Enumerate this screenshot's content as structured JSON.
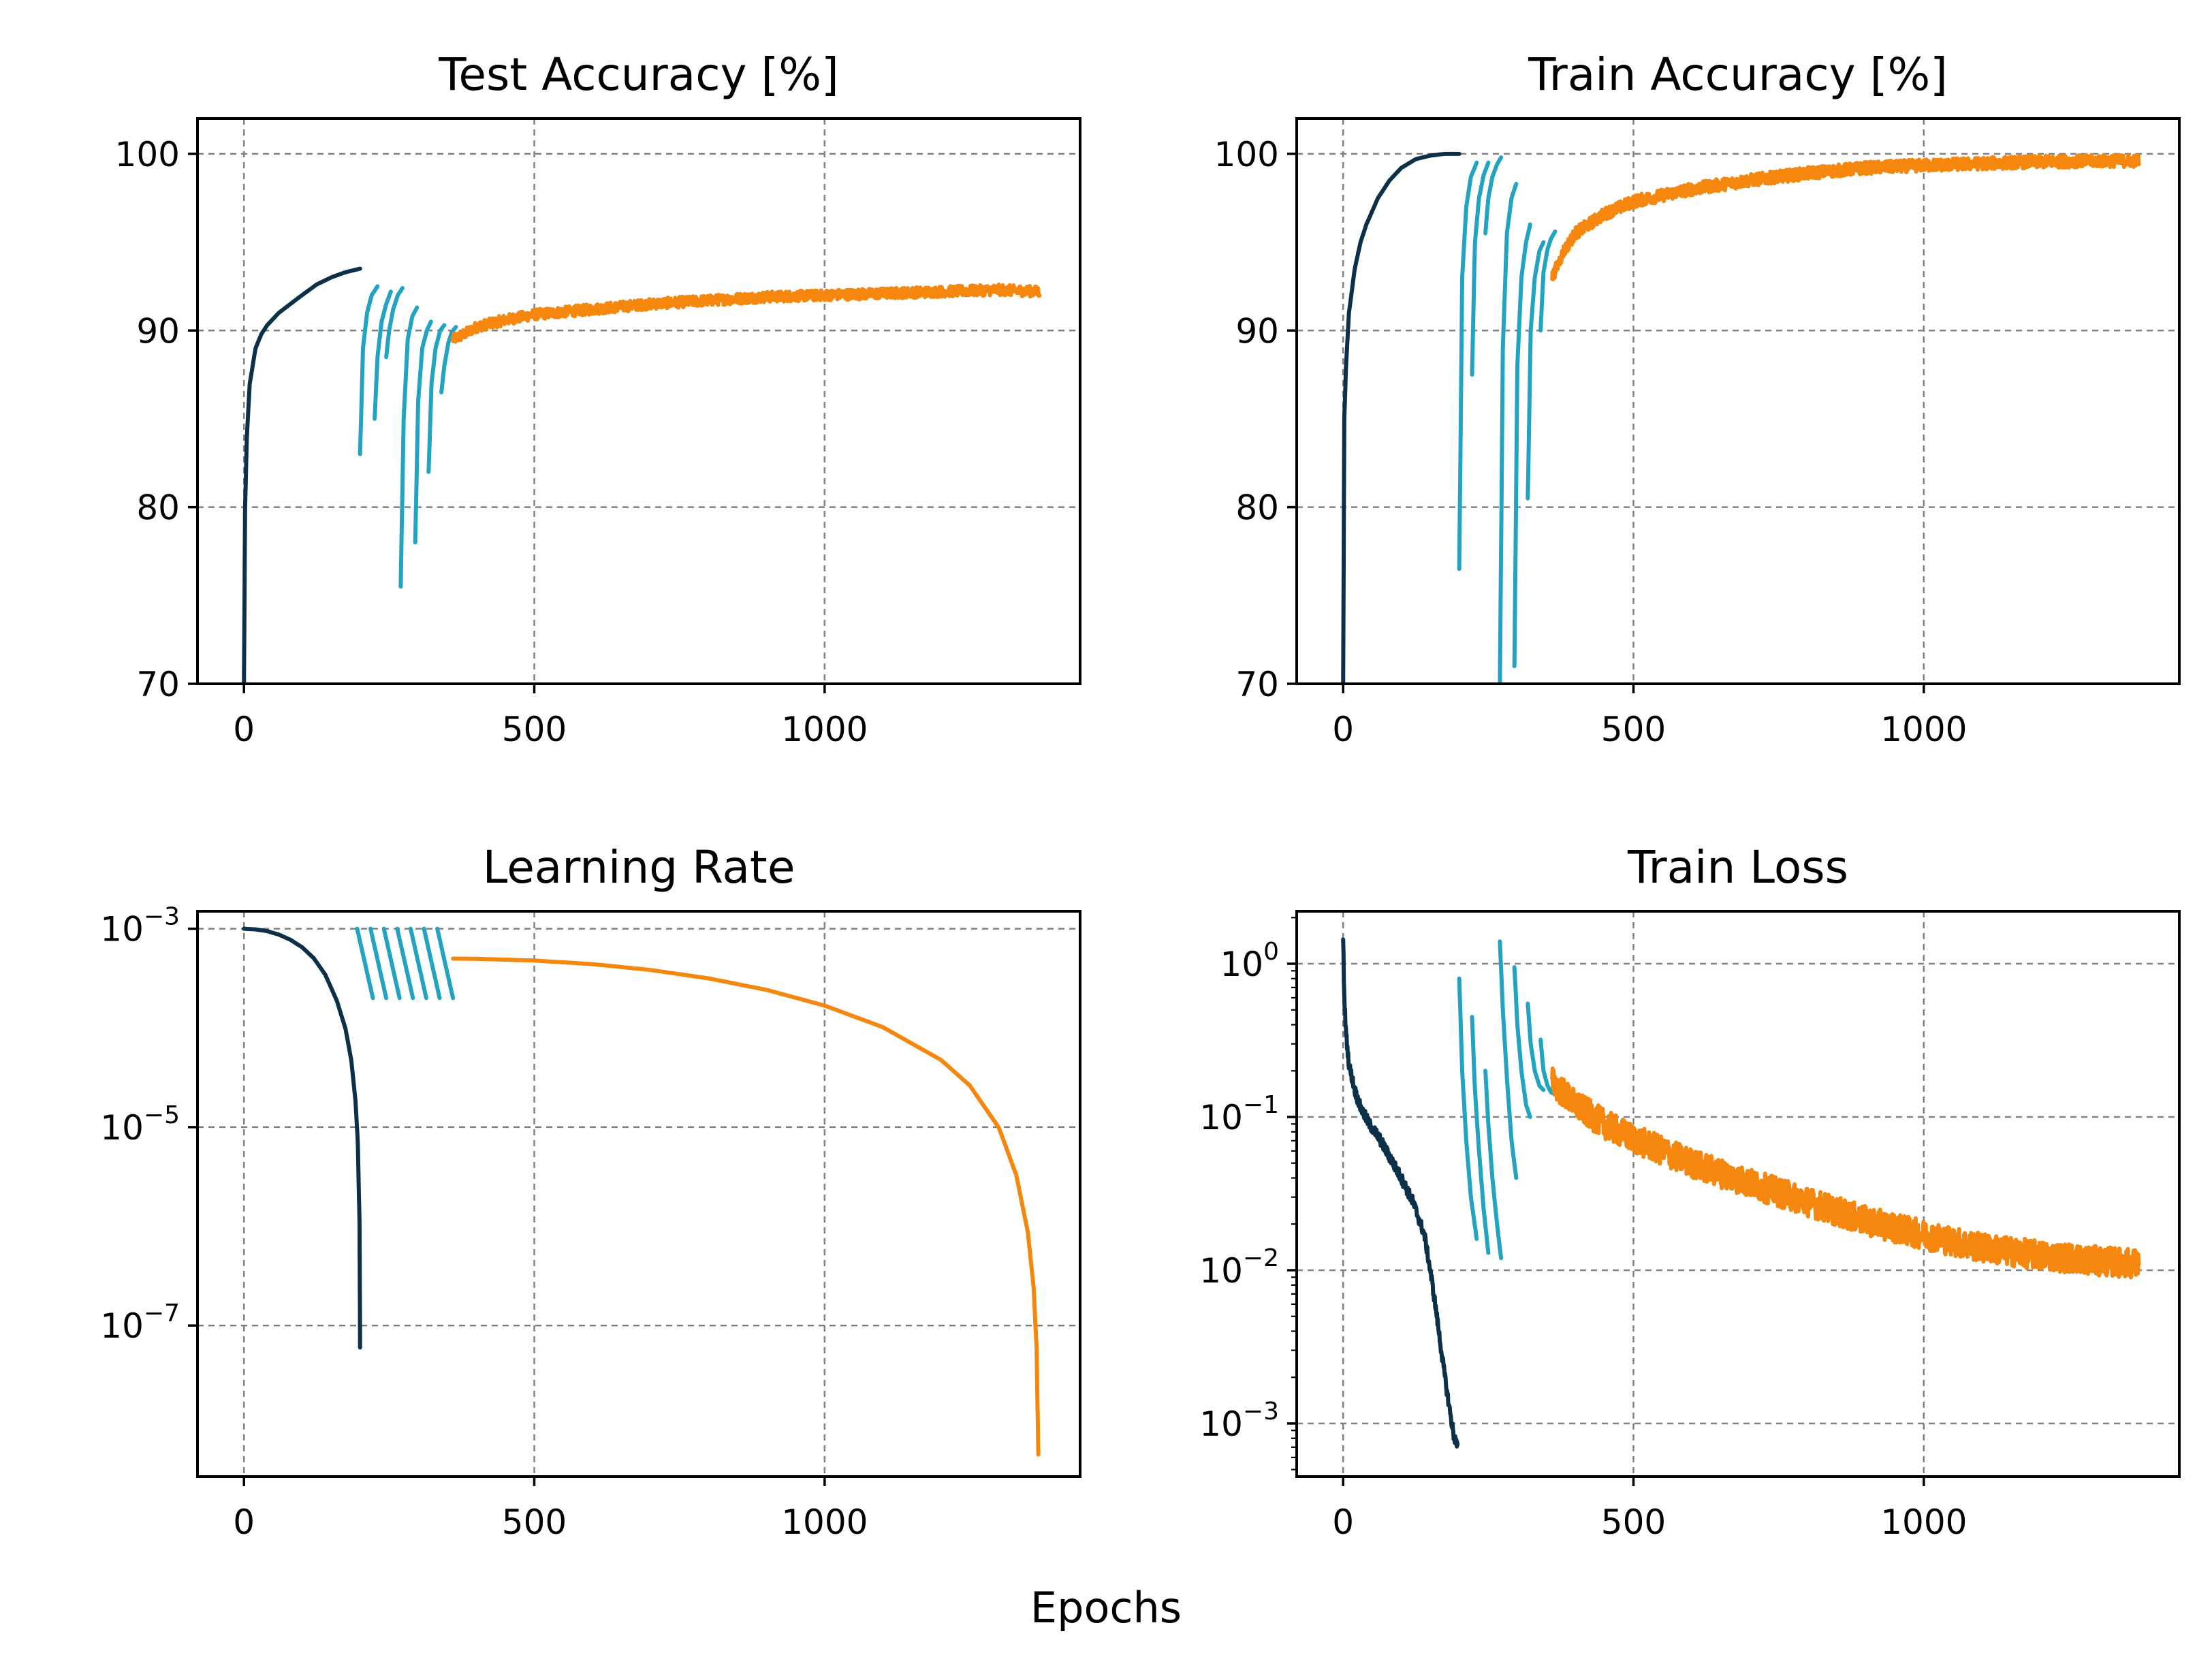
{
  "figure": {
    "xlabel": "Epochs"
  },
  "colors": {
    "dark": "#0b3047",
    "cyan": "#24a3c1",
    "orange": "#f5860e"
  },
  "chart_data": [
    {
      "id": "test-acc",
      "type": "line",
      "title": "Test Accuracy [%]",
      "xlabel": "",
      "ylabel": "",
      "xlim": [
        -80,
        1440
      ],
      "ylim": [
        70,
        102
      ],
      "yscale": "linear",
      "xticks": [
        0,
        500,
        1000
      ],
      "xticklabels": [
        "0",
        "500",
        "1000"
      ],
      "yticks": [
        70,
        80,
        90,
        100
      ],
      "yticklabels": [
        "70",
        "80",
        "90",
        "100"
      ],
      "grid": true,
      "series": [
        {
          "color": "dark",
          "x": [
            0,
            2,
            5,
            10,
            20,
            30,
            40,
            60,
            80,
            100,
            125,
            150,
            175,
            200
          ],
          "y": [
            70,
            80,
            84,
            87,
            89,
            89.8,
            90.3,
            91,
            91.5,
            92,
            92.6,
            93,
            93.3,
            93.5
          ]
        },
        {
          "color": "cyan",
          "x": [
            200,
            205,
            212,
            220,
            230
          ],
          "y": [
            83,
            89,
            91,
            92,
            92.5
          ]
        },
        {
          "color": "cyan",
          "x": [
            225,
            230,
            237,
            245,
            253
          ],
          "y": [
            85,
            88.5,
            90.5,
            91.5,
            92.2
          ]
        },
        {
          "color": "cyan",
          "x": [
            245,
            250,
            257,
            265,
            273
          ],
          "y": [
            88.5,
            90,
            91.2,
            92,
            92.4
          ]
        },
        {
          "color": "cyan",
          "x": [
            270,
            275,
            282,
            290,
            298
          ],
          "y": [
            75.5,
            85,
            89.5,
            90.8,
            91.3
          ]
        },
        {
          "color": "cyan",
          "x": [
            295,
            300,
            307,
            315,
            322
          ],
          "y": [
            78,
            86,
            89,
            90,
            90.5
          ]
        },
        {
          "color": "cyan",
          "x": [
            318,
            323,
            330,
            338,
            345
          ],
          "y": [
            82,
            87,
            89,
            90,
            90.3
          ]
        },
        {
          "color": "cyan",
          "x": [
            340,
            345,
            352,
            358,
            365
          ],
          "y": [
            86.5,
            88,
            89.3,
            89.9,
            90.2
          ]
        },
        {
          "color": "orange",
          "x": [
            360,
            380,
            400,
            450,
            500,
            600,
            700,
            800,
            900,
            1000,
            1100,
            1200,
            1300,
            1370
          ],
          "y": [
            89.5,
            89.8,
            90.2,
            90.6,
            90.9,
            91.2,
            91.5,
            91.7,
            91.9,
            92,
            92.1,
            92.2,
            92.3,
            92.2
          ],
          "noise": 0.3
        }
      ]
    },
    {
      "id": "train-acc",
      "type": "line",
      "title": "Train Accuracy [%]",
      "xlabel": "",
      "ylabel": "",
      "xlim": [
        -80,
        1440
      ],
      "ylim": [
        70,
        102
      ],
      "yscale": "linear",
      "xticks": [
        0,
        500,
        1000
      ],
      "xticklabels": [
        "0",
        "500",
        "1000"
      ],
      "yticks": [
        70,
        80,
        90,
        100
      ],
      "yticklabels": [
        "70",
        "80",
        "90",
        "100"
      ],
      "grid": true,
      "series": [
        {
          "color": "dark",
          "x": [
            0,
            2,
            5,
            10,
            20,
            30,
            40,
            60,
            80,
            100,
            125,
            150,
            175,
            200
          ],
          "y": [
            70,
            85,
            88,
            91,
            93.5,
            95,
            96,
            97.5,
            98.5,
            99.2,
            99.7,
            99.9,
            100,
            100
          ]
        },
        {
          "color": "cyan",
          "x": [
            200,
            205,
            212,
            220,
            230
          ],
          "y": [
            76.5,
            93,
            97,
            98.7,
            99.5
          ]
        },
        {
          "color": "cyan",
          "x": [
            222,
            227,
            234,
            242,
            250
          ],
          "y": [
            87.5,
            95,
            97.5,
            98.8,
            99.5
          ]
        },
        {
          "color": "cyan",
          "x": [
            245,
            250,
            257,
            265,
            272
          ],
          "y": [
            95.5,
            97.5,
            98.7,
            99.4,
            99.8
          ]
        },
        {
          "color": "cyan",
          "x": [
            270,
            275,
            282,
            290,
            298
          ],
          "y": [
            70,
            89,
            95.5,
            97.5,
            98.3
          ]
        },
        {
          "color": "cyan",
          "x": [
            295,
            300,
            307,
            315,
            322
          ],
          "y": [
            71,
            88,
            93,
            95,
            96
          ]
        },
        {
          "color": "cyan",
          "x": [
            318,
            323,
            330,
            338,
            345
          ],
          "y": [
            80.5,
            90,
            93,
            94.5,
            95
          ]
        },
        {
          "color": "cyan",
          "x": [
            340,
            345,
            352,
            358,
            365
          ],
          "y": [
            90,
            93.3,
            94.6,
            95.2,
            95.6
          ]
        },
        {
          "color": "orange",
          "x": [
            360,
            380,
            400,
            450,
            500,
            600,
            700,
            800,
            900,
            1000,
            1100,
            1200,
            1300,
            1370
          ],
          "y": [
            93,
            94.5,
            95.5,
            96.6,
            97.3,
            98,
            98.5,
            98.9,
            99.2,
            99.35,
            99.45,
            99.55,
            99.6,
            99.6
          ],
          "noise": 0.35
        }
      ]
    },
    {
      "id": "learning-rate",
      "type": "line",
      "title": "Learning Rate",
      "xlabel": "",
      "ylabel": "",
      "xlim": [
        -80,
        1440
      ],
      "ylim": [
        3e-09,
        0.0015
      ],
      "yscale": "log",
      "xticks": [
        0,
        500,
        1000
      ],
      "xticklabels": [
        "0",
        "500",
        "1000"
      ],
      "yticks": [
        1e-07,
        1e-05,
        0.001
      ],
      "yticklabels": [
        {
          "base": "10",
          "exp": "−7"
        },
        {
          "base": "10",
          "exp": "−5"
        },
        {
          "base": "10",
          "exp": "−3"
        }
      ],
      "grid": true,
      "series": [
        {
          "color": "dark",
          "x": [
            0,
            20,
            40,
            60,
            80,
            100,
            120,
            140,
            160,
            175,
            185,
            192,
            196,
            199,
            200
          ],
          "y": [
            0.001,
            0.000985,
            0.000946,
            0.000873,
            0.000774,
            0.000652,
            0.000507,
            0.000345,
            0.000188,
            9.77e-05,
            4.66e-05,
            1.86e-05,
            7.2e-06,
            1.1e-06,
            6e-08
          ]
        },
        {
          "color": "cyan",
          "x": [
            195,
            222
          ],
          "y": [
            0.001,
            0.0002
          ]
        },
        {
          "color": "cyan",
          "x": [
            218,
            245
          ],
          "y": [
            0.001,
            0.0002
          ]
        },
        {
          "color": "cyan",
          "x": [
            241,
            268
          ],
          "y": [
            0.001,
            0.0002
          ]
        },
        {
          "color": "cyan",
          "x": [
            264,
            291
          ],
          "y": [
            0.001,
            0.0002
          ]
        },
        {
          "color": "cyan",
          "x": [
            287,
            314
          ],
          "y": [
            0.001,
            0.0002
          ]
        },
        {
          "color": "cyan",
          "x": [
            310,
            337
          ],
          "y": [
            0.001,
            0.0002
          ]
        },
        {
          "color": "cyan",
          "x": [
            333,
            360
          ],
          "y": [
            0.001,
            0.0002
          ]
        },
        {
          "color": "orange",
          "x": [
            360,
            400,
            500,
            600,
            700,
            800,
            900,
            1000,
            1100,
            1200,
            1250,
            1300,
            1330,
            1350,
            1360,
            1365,
            1368
          ],
          "y": [
            0.0005,
            0.000498,
            0.000478,
            0.00044,
            0.000384,
            0.000316,
            0.000242,
            0.000168,
            0.000102,
            4.78e-05,
            2.63e-05,
            9.9e-06,
            3.3e-06,
            8.7e-07,
            2.4e-07,
            6e-08,
            5e-09
          ]
        }
      ]
    },
    {
      "id": "train-loss",
      "type": "line",
      "title": "Train Loss",
      "xlabel": "",
      "ylabel": "",
      "xlim": [
        -80,
        1440
      ],
      "ylim": [
        0.00045,
        2.2
      ],
      "yscale": "log",
      "xticks": [
        0,
        500,
        1000
      ],
      "xticklabels": [
        "0",
        "500",
        "1000"
      ],
      "yticks": [
        0.001,
        0.01,
        0.1,
        1
      ],
      "yticklabels": [
        {
          "base": "10",
          "exp": "−3"
        },
        {
          "base": "10",
          "exp": "−2"
        },
        {
          "base": "10",
          "exp": "−1"
        },
        {
          "base": "10",
          "exp": "0"
        }
      ],
      "grid": true,
      "series": [
        {
          "color": "dark",
          "x": [
            0,
            2,
            5,
            10,
            20,
            30,
            45,
            60,
            80,
            100,
            120,
            140,
            150,
            160,
            170,
            180,
            190,
            197
          ],
          "y": [
            1.5,
            0.6,
            0.35,
            0.22,
            0.15,
            0.115,
            0.09,
            0.075,
            0.055,
            0.04,
            0.028,
            0.017,
            0.01,
            0.0055,
            0.0028,
            0.0015,
            0.00085,
            0.0007
          ],
          "noise": 0.08
        },
        {
          "color": "cyan",
          "x": [
            200,
            205,
            212,
            220,
            230
          ],
          "y": [
            0.8,
            0.2,
            0.07,
            0.03,
            0.016
          ]
        },
        {
          "color": "cyan",
          "x": [
            222,
            227,
            234,
            242,
            250
          ],
          "y": [
            0.45,
            0.15,
            0.06,
            0.025,
            0.013
          ]
        },
        {
          "color": "cyan",
          "x": [
            245,
            250,
            257,
            265,
            272
          ],
          "y": [
            0.2,
            0.09,
            0.04,
            0.02,
            0.012
          ]
        },
        {
          "color": "cyan",
          "x": [
            270,
            275,
            282,
            290,
            298
          ],
          "y": [
            1.4,
            0.5,
            0.18,
            0.07,
            0.04
          ]
        },
        {
          "color": "cyan",
          "x": [
            295,
            300,
            307,
            315,
            322
          ],
          "y": [
            0.95,
            0.4,
            0.2,
            0.12,
            0.1
          ]
        },
        {
          "color": "cyan",
          "x": [
            318,
            323,
            330,
            338,
            345
          ],
          "y": [
            0.55,
            0.3,
            0.2,
            0.16,
            0.15
          ]
        },
        {
          "color": "cyan",
          "x": [
            340,
            345,
            352,
            358,
            365
          ],
          "y": [
            0.32,
            0.2,
            0.16,
            0.145,
            0.14
          ]
        },
        {
          "color": "orange",
          "x": [
            360,
            400,
            450,
            500,
            600,
            700,
            800,
            900,
            1000,
            1100,
            1200,
            1300,
            1370
          ],
          "y": [
            0.17,
            0.12,
            0.09,
            0.072,
            0.05,
            0.037,
            0.028,
            0.021,
            0.017,
            0.014,
            0.0125,
            0.0115,
            0.011
          ],
          "noise": 0.22
        }
      ]
    }
  ]
}
